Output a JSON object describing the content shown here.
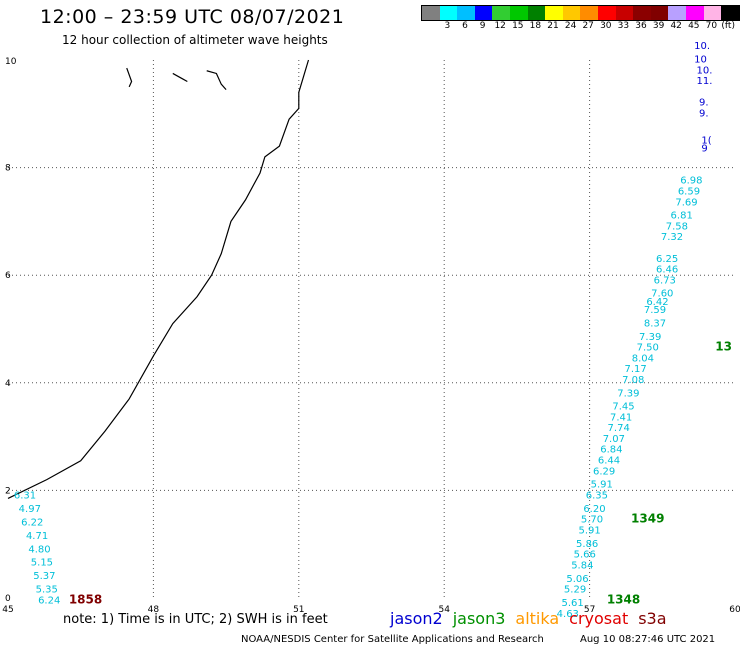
{
  "title": "12:00 – 23:59 UTC 08/07/2021",
  "subtitle": "12 hour collection of altimeter wave heights",
  "legend": {
    "colors": [
      "#808080",
      "#00ffff",
      "#00bfff",
      "#0000ff",
      "#32cd32",
      "#00c800",
      "#008000",
      "#ffff00",
      "#ffc800",
      "#ff8c00",
      "#ff0000",
      "#c80000",
      "#8b0000",
      "#800000",
      "#b8a0ff",
      "#ff00ff",
      "#ffb4e6",
      "#000000"
    ],
    "labels": [
      "3",
      "6",
      "9",
      "12",
      "15",
      "18",
      "21",
      "24",
      "27",
      "30",
      "33",
      "36",
      "39",
      "42",
      "45",
      "70"
    ],
    "unit": "(ft)"
  },
  "axes": {
    "x_ticks": [
      "45",
      "48",
      "51",
      "54",
      "57",
      "60"
    ],
    "y_ticks": [
      "0",
      "2",
      "4",
      "6",
      "8",
      "10"
    ]
  },
  "coastline_points": [
    [
      45.0,
      1.85
    ],
    [
      45.8,
      2.2
    ],
    [
      46.5,
      2.55
    ],
    [
      47.0,
      3.1
    ],
    [
      47.5,
      3.7
    ],
    [
      48.0,
      4.5
    ],
    [
      48.4,
      5.1
    ],
    [
      48.9,
      5.6
    ],
    [
      49.2,
      6.0
    ],
    [
      49.4,
      6.4
    ],
    [
      49.6,
      7.0
    ],
    [
      49.9,
      7.4
    ],
    [
      50.2,
      7.9
    ],
    [
      50.3,
      8.2
    ],
    [
      50.6,
      8.4
    ],
    [
      50.8,
      8.9
    ],
    [
      51.0,
      9.1
    ],
    [
      51.0,
      9.4
    ],
    [
      51.1,
      9.7
    ],
    [
      51.2,
      10.0
    ]
  ],
  "islands": [
    {
      "name": "island-a",
      "points": [
        [
          47.45,
          9.85
        ],
        [
          47.55,
          9.6
        ],
        [
          47.5,
          9.5
        ]
      ]
    },
    {
      "name": "island-b",
      "points": [
        [
          48.4,
          9.75
        ],
        [
          48.6,
          9.65
        ],
        [
          48.7,
          9.6
        ]
      ]
    },
    {
      "name": "island-c",
      "points": [
        [
          49.1,
          9.8
        ],
        [
          49.3,
          9.75
        ],
        [
          49.4,
          9.55
        ],
        [
          49.5,
          9.45
        ]
      ]
    }
  ],
  "tracks": [
    {
      "name": "cryosat-track-1858",
      "color": "#00bfd8",
      "values": [
        {
          "lon": 45.35,
          "lat": 1.85,
          "v": "6.31"
        },
        {
          "lon": 45.45,
          "lat": 1.6,
          "v": "4.97"
        },
        {
          "lon": 45.5,
          "lat": 1.35,
          "v": "6.22"
        },
        {
          "lon": 45.6,
          "lat": 1.1,
          "v": "4.71"
        },
        {
          "lon": 45.65,
          "lat": 0.85,
          "v": "4.80"
        },
        {
          "lon": 45.7,
          "lat": 0.6,
          "v": "5.15"
        },
        {
          "lon": 45.75,
          "lat": 0.35,
          "v": "5.37"
        },
        {
          "lon": 45.8,
          "lat": 0.1,
          "v": "5.35"
        },
        {
          "lon": 45.85,
          "lat": -0.1,
          "v": "6.24"
        }
      ],
      "label": {
        "text": "1858",
        "color": "#800000",
        "lon": 46.6,
        "lat": -0.1
      }
    },
    {
      "name": "jason3-track-1348",
      "color": "#00bfd8",
      "values": [
        {
          "lon": 58.6,
          "lat": 6.25,
          "v": "6.25"
        },
        {
          "lon": 58.6,
          "lat": 6.05,
          "v": "6.46"
        },
        {
          "lon": 58.55,
          "lat": 5.85,
          "v": "6.73"
        },
        {
          "lon": 58.5,
          "lat": 5.6,
          "v": "7.60"
        },
        {
          "lon": 58.4,
          "lat": 5.45,
          "v": "6.42"
        },
        {
          "lon": 58.35,
          "lat": 5.3,
          "v": "7.59"
        },
        {
          "lon": 58.35,
          "lat": 5.05,
          "v": "8.37"
        },
        {
          "lon": 58.25,
          "lat": 4.8,
          "v": "7.39"
        },
        {
          "lon": 58.2,
          "lat": 4.6,
          "v": "7.50"
        },
        {
          "lon": 58.1,
          "lat": 4.4,
          "v": "8.04"
        },
        {
          "lon": 57.95,
          "lat": 4.2,
          "v": "7.17"
        },
        {
          "lon": 57.9,
          "lat": 4.0,
          "v": "7.08"
        },
        {
          "lon": 57.8,
          "lat": 3.75,
          "v": "7.39"
        },
        {
          "lon": 57.7,
          "lat": 3.5,
          "v": "7.45"
        },
        {
          "lon": 57.65,
          "lat": 3.3,
          "v": "7.41"
        },
        {
          "lon": 57.6,
          "lat": 3.1,
          "v": "7.74"
        },
        {
          "lon": 57.5,
          "lat": 2.9,
          "v": "7.07"
        },
        {
          "lon": 57.45,
          "lat": 2.7,
          "v": "6.84"
        },
        {
          "lon": 57.4,
          "lat": 2.5,
          "v": "6.44"
        },
        {
          "lon": 57.3,
          "lat": 2.3,
          "v": "6.29"
        },
        {
          "lon": 57.25,
          "lat": 2.05,
          "v": "5.91"
        },
        {
          "lon": 57.15,
          "lat": 1.85,
          "v": "6.35"
        },
        {
          "lon": 57.1,
          "lat": 1.6,
          "v": "6.20"
        },
        {
          "lon": 57.05,
          "lat": 1.4,
          "v": "5.70"
        },
        {
          "lon": 57.0,
          "lat": 1.2,
          "v": "5.91"
        },
        {
          "lon": 56.95,
          "lat": 0.95,
          "v": "5.86"
        },
        {
          "lon": 56.9,
          "lat": 0.75,
          "v": "5.66"
        },
        {
          "lon": 56.85,
          "lat": 0.55,
          "v": "5.84"
        },
        {
          "lon": 56.75,
          "lat": 0.3,
          "v": "5.06"
        },
        {
          "lon": 56.7,
          "lat": 0.1,
          "v": "5.29"
        },
        {
          "lon": 56.65,
          "lat": -0.15,
          "v": "5.61"
        },
        {
          "lon": 56.55,
          "lat": -0.35,
          "v": "4.63"
        }
      ],
      "label": {
        "text": "1348",
        "color": "#008000",
        "lon": 57.7,
        "lat": -0.1
      }
    },
    {
      "name": "jason3-track-1349-area",
      "color": "#00bfd8",
      "values": [
        {
          "lon": 59.1,
          "lat": 7.7,
          "v": "6.98"
        },
        {
          "lon": 59.05,
          "lat": 7.5,
          "v": "6.59"
        },
        {
          "lon": 59.0,
          "lat": 7.3,
          "v": "7.69"
        },
        {
          "lon": 58.9,
          "lat": 7.05,
          "v": "6.81"
        },
        {
          "lon": 58.8,
          "lat": 6.85,
          "v": "7.58"
        },
        {
          "lon": 58.7,
          "lat": 6.65,
          "v": "7.32"
        }
      ],
      "label": {
        "text": "1349",
        "color": "#008000",
        "lon": 58.2,
        "lat": 1.4
      }
    }
  ],
  "blue_track": {
    "color": "#0000d0",
    "values": [
      {
        "lon": 58.95,
        "lat": 10.2,
        "v": "10."
      },
      {
        "lon": 58.95,
        "lat": 9.95,
        "v": "10"
      },
      {
        "lon": 59.0,
        "lat": 9.75,
        "v": "10."
      },
      {
        "lon": 59.0,
        "lat": 9.55,
        "v": "11."
      },
      {
        "lon": 59.05,
        "lat": 9.15,
        "v": "9."
      },
      {
        "lon": 59.05,
        "lat": 8.95,
        "v": "9."
      },
      {
        "lon": 59.1,
        "lat": 8.45,
        "v": "1("
      },
      {
        "lon": 59.1,
        "lat": 8.3,
        "v": "9"
      }
    ]
  },
  "green_label_right": {
    "text": "13",
    "color": "#008000",
    "lon": 59.8,
    "lat": 4.6
  },
  "note": "note: 1) Time is in UTC; 2) SWH is in feet",
  "satellites": [
    {
      "name": "jason2",
      "color": "#0000d0"
    },
    {
      "name": "jason3",
      "color": "#009000"
    },
    {
      "name": "altika",
      "color": "#ff9900"
    },
    {
      "name": "cryosat",
      "color": "#e00000"
    },
    {
      "name": "s3a",
      "color": "#800000"
    }
  ],
  "credit": "NOAA/NESDIS Center for Satellite Applications and Research",
  "timestamp": "Aug 10 08:27:46 UTC 2021"
}
